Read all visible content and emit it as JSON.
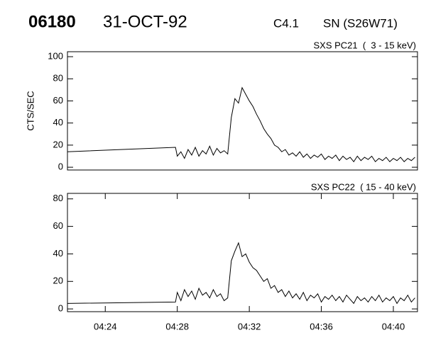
{
  "header": {
    "id": "06180",
    "date": "31-OCT-92",
    "class": "C4.1",
    "location": "SN (S26W71)"
  },
  "chart_data": [
    {
      "type": "line",
      "title": "SXS PC21  (  3 - 15 keV)",
      "y_label": "CTS/SEC",
      "xlim": [
        261.9,
        281.34
      ],
      "ylim": [
        -2.5,
        104.5
      ],
      "yticks": [
        0,
        20,
        40,
        60,
        80,
        100
      ],
      "series": [
        {
          "name": "SXS PC21",
          "color": "#000000",
          "x": [
            261.9,
            267.9,
            268.0,
            268.2,
            268.4,
            268.6,
            268.8,
            269.0,
            269.2,
            269.4,
            269.6,
            269.8,
            270.0,
            270.2,
            270.4,
            270.6,
            270.8,
            271.0,
            271.2,
            271.4,
            271.6,
            271.8,
            272.0,
            272.2,
            272.4,
            272.6,
            272.8,
            273.0,
            273.2,
            273.4,
            273.6,
            273.8,
            274.0,
            274.2,
            274.4,
            274.6,
            274.8,
            275.0,
            275.2,
            275.4,
            275.6,
            275.8,
            276.0,
            276.2,
            276.4,
            276.6,
            276.8,
            277.0,
            277.2,
            277.4,
            277.6,
            277.8,
            278.0,
            278.2,
            278.4,
            278.6,
            278.8,
            279.0,
            279.2,
            279.4,
            279.6,
            279.8,
            280.0,
            280.2,
            280.4,
            280.6,
            280.8,
            281.0,
            281.2
          ],
          "values": [
            14,
            18,
            10,
            14,
            8,
            16,
            11,
            18,
            10,
            15,
            12,
            19,
            11,
            17,
            13,
            15,
            12,
            45,
            62,
            58,
            72,
            66,
            60,
            55,
            48,
            42,
            35,
            30,
            26,
            20,
            18,
            14,
            16,
            11,
            13,
            10,
            14,
            9,
            12,
            8,
            11,
            9,
            12,
            7,
            10,
            8,
            11,
            6,
            10,
            7,
            9,
            5,
            10,
            6,
            9,
            7,
            10,
            5,
            8,
            6,
            9,
            5,
            8,
            6,
            9,
            5,
            8,
            6,
            9
          ]
        }
      ]
    },
    {
      "type": "line",
      "title": "SXS PC22  ( 15 - 40 keV)",
      "xlim": [
        261.9,
        281.34
      ],
      "ylim": [
        -2,
        84
      ],
      "yticks": [
        0,
        20,
        40,
        60,
        80
      ],
      "xticks": [
        {
          "value": 264,
          "label": "04:24"
        },
        {
          "value": 268,
          "label": "04:28"
        },
        {
          "value": 272,
          "label": "04:32"
        },
        {
          "value": 276,
          "label": "04:36"
        },
        {
          "value": 280,
          "label": "04:40"
        }
      ],
      "series": [
        {
          "name": "SXS PC22",
          "color": "#000000",
          "x": [
            261.9,
            267.9,
            268.0,
            268.2,
            268.4,
            268.6,
            268.8,
            269.0,
            269.2,
            269.4,
            269.6,
            269.8,
            270.0,
            270.2,
            270.4,
            270.6,
            270.8,
            271.0,
            271.2,
            271.4,
            271.6,
            271.8,
            272.0,
            272.2,
            272.4,
            272.6,
            272.8,
            273.0,
            273.2,
            273.4,
            273.6,
            273.8,
            274.0,
            274.2,
            274.4,
            274.6,
            274.8,
            275.0,
            275.2,
            275.4,
            275.6,
            275.8,
            276.0,
            276.2,
            276.4,
            276.6,
            276.8,
            277.0,
            277.2,
            277.4,
            277.6,
            277.8,
            278.0,
            278.2,
            278.4,
            278.6,
            278.8,
            279.0,
            279.2,
            279.4,
            279.6,
            279.8,
            280.0,
            280.2,
            280.4,
            280.6,
            280.8,
            281.0,
            281.2
          ],
          "values": [
            4,
            5,
            12,
            6,
            14,
            9,
            13,
            7,
            15,
            10,
            12,
            8,
            14,
            9,
            11,
            6,
            8,
            35,
            42,
            48,
            38,
            40,
            34,
            30,
            28,
            24,
            20,
            22,
            15,
            17,
            12,
            14,
            9,
            13,
            8,
            11,
            7,
            12,
            6,
            10,
            8,
            11,
            5,
            9,
            7,
            10,
            6,
            9,
            5,
            10,
            7,
            4,
            9,
            6,
            8,
            5,
            9,
            6,
            10,
            5,
            8,
            6,
            9,
            4,
            8,
            6,
            10,
            5,
            8
          ]
        }
      ]
    }
  ]
}
